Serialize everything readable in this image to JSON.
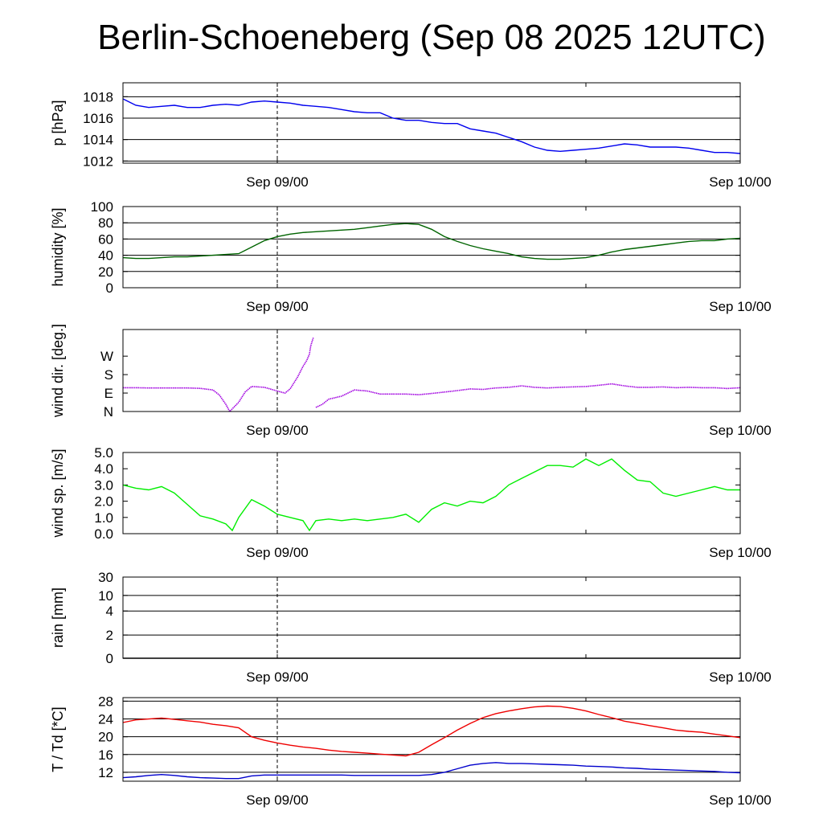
{
  "title": "Berlin-Schoeneberg (Sep 08 2025 12UTC)",
  "colors": {
    "pressure": "#0000ee",
    "humidity": "#006400",
    "wind_dir": "#a000e0",
    "wind_speed": "#00ee00",
    "rain": "#000000",
    "temperature": "#ee0000",
    "dewpoint": "#0000cc"
  },
  "chart_data": [
    {
      "type": "line",
      "id": "pressure",
      "ylabel": "p [hPa]",
      "x_ticks": [
        "Sep 09/00",
        "Sep 10/00"
      ],
      "x": [
        12,
        13,
        14,
        15,
        16,
        17,
        18,
        19,
        20,
        21,
        22,
        23,
        24,
        25,
        26,
        27,
        28,
        29,
        30,
        31,
        32,
        33,
        34,
        35,
        36,
        37,
        38,
        39,
        40,
        41,
        42,
        43,
        44,
        45,
        46,
        47,
        48,
        49,
        50,
        51,
        52,
        53,
        54,
        55,
        56,
        57,
        58,
        59,
        60
      ],
      "series": [
        {
          "values": [
            1017.8,
            1017.2,
            1017.0,
            1017.1,
            1017.2,
            1017.0,
            1017.0,
            1017.2,
            1017.3,
            1017.2,
            1017.5,
            1017.6,
            1017.5,
            1017.4,
            1017.2,
            1017.1,
            1017.0,
            1016.8,
            1016.6,
            1016.5,
            1016.5,
            1016.0,
            1015.8,
            1015.8,
            1015.6,
            1015.5,
            1015.5,
            1015.0,
            1014.8,
            1014.6,
            1014.2,
            1013.8,
            1013.3,
            1013.0,
            1012.9,
            1013.0,
            1013.1,
            1013.2,
            1013.4,
            1013.6,
            1013.5,
            1013.3,
            1013.3,
            1013.3,
            1013.2,
            1013.0,
            1012.8,
            1012.8,
            1012.7
          ]
        }
      ],
      "ylim": [
        1011.8,
        1019.3
      ],
      "y_ticks": [
        1012,
        1014,
        1016,
        1018
      ],
      "grid": true
    },
    {
      "type": "line",
      "id": "humidity",
      "ylabel": "humidity [%]",
      "x_ticks": [
        "Sep 09/00",
        "Sep 10/00"
      ],
      "x": [
        12,
        13,
        14,
        15,
        16,
        17,
        18,
        19,
        20,
        21,
        22,
        23,
        24,
        25,
        26,
        27,
        28,
        29,
        30,
        31,
        32,
        33,
        34,
        35,
        36,
        37,
        38,
        39,
        40,
        41,
        42,
        43,
        44,
        45,
        46,
        47,
        48,
        49,
        50,
        51,
        52,
        53,
        54,
        55,
        56,
        57,
        58,
        59,
        60
      ],
      "series": [
        {
          "values": [
            37,
            36,
            36,
            37,
            38,
            38,
            39,
            40,
            41,
            42,
            50,
            58,
            63,
            66,
            68,
            69,
            70,
            71,
            72,
            74,
            76,
            78,
            79,
            78,
            72,
            63,
            57,
            52,
            48,
            45,
            42,
            38,
            36,
            35,
            35,
            36,
            37,
            40,
            44,
            47,
            49,
            51,
            53,
            55,
            57,
            58,
            58,
            60,
            61
          ]
        }
      ],
      "ylim": [
        0,
        100
      ],
      "y_ticks": [
        0,
        20,
        40,
        60,
        80,
        100
      ],
      "grid": true
    },
    {
      "type": "scatter",
      "id": "wind_direction",
      "ylabel": "wind dir. [deg.]",
      "x_ticks": [
        "Sep 09/00",
        "Sep 10/00"
      ],
      "x": [
        12,
        13,
        14,
        15,
        16,
        17,
        18,
        19,
        19.5,
        20,
        20.3,
        21,
        21.5,
        22,
        23,
        24,
        24.6,
        25,
        25.6,
        26,
        26.3,
        26.5,
        26.6,
        26.8,
        27,
        27.5,
        28,
        29,
        30,
        31,
        32,
        33,
        34,
        35,
        36,
        37,
        38,
        39,
        40,
        41,
        42,
        43,
        44,
        45,
        46,
        47,
        48,
        49,
        50,
        51,
        52,
        53,
        54,
        55,
        56,
        57,
        58,
        59,
        60
      ],
      "series": [
        {
          "values": [
            116,
            116,
            115,
            115,
            115,
            115,
            113,
            105,
            80,
            35,
            0,
            45,
            95,
            122,
            118,
            100,
            90,
            110,
            170,
            220,
            250,
            280,
            320,
            360,
            20,
            35,
            60,
            75,
            105,
            100,
            85,
            85,
            85,
            82,
            88,
            95,
            102,
            110,
            108,
            115,
            118,
            125,
            118,
            115,
            118,
            120,
            122,
            128,
            135,
            125,
            118,
            118,
            120,
            116,
            118,
            116,
            116,
            112,
            116
          ]
        }
      ],
      "ylim": [
        0,
        400
      ],
      "y_ticks": [
        0,
        90,
        180,
        270
      ],
      "y_tick_labels": [
        "N",
        "E",
        "S",
        "W"
      ],
      "grid": false
    },
    {
      "type": "line",
      "id": "wind_speed",
      "ylabel": "wind sp. [m/s]",
      "x_ticks": [
        "Sep 09/00",
        "Sep 10/00"
      ],
      "x": [
        12,
        13,
        14,
        15,
        16,
        17,
        18,
        19,
        20,
        20.5,
        21,
        22,
        23,
        24,
        25,
        26,
        26.5,
        27,
        28,
        29,
        30,
        31,
        32,
        33,
        34,
        35,
        36,
        37,
        38,
        39,
        40,
        41,
        42,
        43,
        44,
        45,
        46,
        47,
        48,
        49,
        50,
        51,
        52,
        53,
        54,
        55,
        56,
        57,
        58,
        59,
        60
      ],
      "series": [
        {
          "values": [
            3.0,
            2.8,
            2.7,
            2.9,
            2.5,
            1.8,
            1.1,
            0.9,
            0.6,
            0.2,
            1.0,
            2.1,
            1.7,
            1.2,
            1.0,
            0.8,
            0.2,
            0.8,
            0.9,
            0.8,
            0.9,
            0.8,
            0.9,
            1.0,
            1.2,
            0.7,
            1.5,
            1.9,
            1.7,
            2.0,
            1.9,
            2.3,
            3.0,
            3.4,
            3.8,
            4.2,
            4.2,
            4.1,
            4.6,
            4.2,
            4.6,
            3.9,
            3.3,
            3.2,
            2.5,
            2.3,
            2.5,
            2.7,
            2.9,
            2.7,
            2.7
          ]
        }
      ],
      "ylim": [
        0,
        5
      ],
      "y_ticks": [
        0,
        1,
        2,
        3,
        4,
        5
      ],
      "y_tick_labels": [
        "0.0",
        "1.0",
        "2.0",
        "3.0",
        "4.0",
        "5.0"
      ],
      "grid": false
    },
    {
      "type": "line",
      "id": "rain",
      "ylabel": "rain [mm]",
      "x_ticks": [
        "Sep 09/00",
        "Sep 10/00"
      ],
      "x": [
        12,
        60
      ],
      "series": [
        {
          "values": [
            0,
            0
          ]
        }
      ],
      "ylim": [
        0,
        30
      ],
      "y_ticks": [
        0,
        2,
        4,
        10,
        30
      ],
      "grid": true
    },
    {
      "type": "line",
      "id": "temperature",
      "ylabel": "T / Td [*C]",
      "x_ticks": [
        "Sep 09/00",
        "Sep 10/00"
      ],
      "x": [
        12,
        13,
        14,
        15,
        16,
        17,
        18,
        19,
        20,
        21,
        22,
        23,
        24,
        25,
        26,
        27,
        28,
        29,
        30,
        31,
        32,
        33,
        34,
        35,
        36,
        37,
        38,
        39,
        40,
        41,
        42,
        43,
        44,
        45,
        46,
        47,
        48,
        49,
        50,
        51,
        52,
        53,
        54,
        55,
        56,
        57,
        58,
        59,
        60
      ],
      "series": [
        {
          "values": [
            23.2,
            23.8,
            24.0,
            24.2,
            23.9,
            23.6,
            23.3,
            22.8,
            22.5,
            22.0,
            20.0,
            19.2,
            18.6,
            18.1,
            17.7,
            17.4,
            17.0,
            16.7,
            16.5,
            16.3,
            16.1,
            15.9,
            15.7,
            16.5,
            18.2,
            19.8,
            21.5,
            23.0,
            24.3,
            25.2,
            25.8,
            26.3,
            26.7,
            26.9,
            26.8,
            26.4,
            25.8,
            25.0,
            24.3,
            23.5,
            23.0,
            22.5,
            22.0,
            21.5,
            21.2,
            21.0,
            20.6,
            20.2,
            19.8
          ]
        },
        {
          "values": [
            10.8,
            11.0,
            11.3,
            11.5,
            11.3,
            11.0,
            10.8,
            10.7,
            10.6,
            10.6,
            11.2,
            11.4,
            11.4,
            11.4,
            11.4,
            11.4,
            11.4,
            11.4,
            11.3,
            11.3,
            11.3,
            11.3,
            11.3,
            11.3,
            11.5,
            12.0,
            12.8,
            13.6,
            14.0,
            14.2,
            14.0,
            14.0,
            13.9,
            13.8,
            13.7,
            13.6,
            13.4,
            13.3,
            13.2,
            13.0,
            12.9,
            12.7,
            12.6,
            12.5,
            12.4,
            12.3,
            12.2,
            12.0,
            11.9
          ]
        }
      ],
      "ylim": [
        10,
        28.8
      ],
      "y_ticks": [
        12,
        16,
        20,
        24,
        28
      ],
      "grid": true
    }
  ]
}
